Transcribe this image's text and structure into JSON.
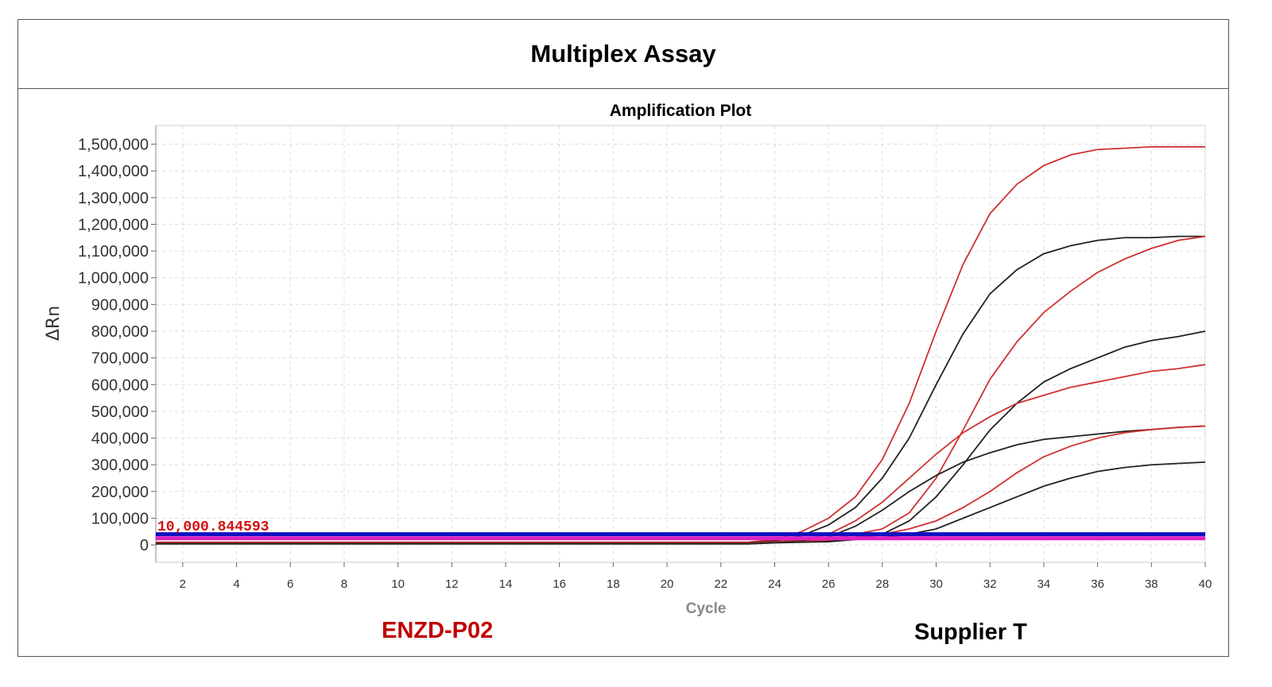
{
  "header": {
    "title": "Multiplex Assay"
  },
  "footer": {
    "left_label": "ENZD-P02",
    "right_label": "Supplier T"
  },
  "colors": {
    "red": "#d03030",
    "black": "#222222",
    "threshold_blue": "#1010c0",
    "threshold_magenta": "#e020c0",
    "left_label": "#c00000"
  },
  "chart_data": {
    "type": "line",
    "title": "Amplification Plot",
    "xlabel": "Cycle",
    "ylabel": "ΔRn",
    "xlim": [
      1,
      40
    ],
    "ylim": [
      -65000,
      1570000
    ],
    "grid": true,
    "xticks": [
      2,
      4,
      6,
      8,
      10,
      12,
      14,
      16,
      18,
      20,
      22,
      24,
      26,
      28,
      30,
      32,
      34,
      36,
      38,
      40
    ],
    "yticks": [
      0,
      100000,
      200000,
      300000,
      400000,
      500000,
      600000,
      700000,
      800000,
      900000,
      1000000,
      1100000,
      1200000,
      1300000,
      1400000,
      1500000
    ],
    "ytick_labels": [
      "0",
      "100,000",
      "200,000",
      "300,000",
      "400,000",
      "500,000",
      "600,000",
      "700,000",
      "800,000",
      "900,000",
      "1,000,000",
      "1,100,000",
      "1,200,000",
      "1,300,000",
      "1,400,000",
      "1,500,000"
    ],
    "threshold_label": "10,000.844593",
    "thresholds": [
      {
        "name": "blue",
        "value": 40000
      },
      {
        "name": "magenta",
        "value": 25000
      }
    ],
    "start_cycle": 24,
    "series": [
      {
        "name": "red-1",
        "color": "red",
        "values": [
          20000,
          50000,
          100000,
          180000,
          320000,
          530000,
          800000,
          1050000,
          1240000,
          1350000,
          1420000,
          1460000,
          1480000,
          1485000,
          1490000,
          1490000,
          1490000
        ]
      },
      {
        "name": "black-1",
        "color": "black",
        "values": [
          15000,
          35000,
          75000,
          140000,
          250000,
          400000,
          600000,
          790000,
          940000,
          1030000,
          1090000,
          1120000,
          1140000,
          1150000,
          1150000,
          1155000,
          1155000
        ]
      },
      {
        "name": "red-2",
        "color": "red",
        "values": [
          10000,
          15000,
          20000,
          40000,
          60000,
          120000,
          250000,
          430000,
          620000,
          760000,
          870000,
          950000,
          1020000,
          1070000,
          1110000,
          1140000,
          1155000
        ]
      },
      {
        "name": "black-2",
        "color": "black",
        "values": [
          10000,
          12000,
          15000,
          25000,
          40000,
          90000,
          180000,
          300000,
          430000,
          530000,
          610000,
          660000,
          700000,
          740000,
          765000,
          780000,
          800000
        ]
      },
      {
        "name": "red-3",
        "color": "red",
        "values": [
          12000,
          20000,
          40000,
          90000,
          160000,
          250000,
          340000,
          420000,
          480000,
          530000,
          560000,
          590000,
          610000,
          630000,
          650000,
          660000,
          675000
        ]
      },
      {
        "name": "black-3",
        "color": "black",
        "values": [
          10000,
          15000,
          30000,
          70000,
          130000,
          200000,
          260000,
          310000,
          345000,
          375000,
          395000,
          405000,
          415000,
          425000,
          432000,
          440000,
          445000
        ]
      },
      {
        "name": "red-4",
        "color": "red",
        "values": [
          10000,
          12000,
          18000,
          30000,
          40000,
          60000,
          90000,
          140000,
          200000,
          270000,
          330000,
          370000,
          400000,
          420000,
          432000,
          440000,
          445000
        ]
      },
      {
        "name": "black-4",
        "color": "black",
        "values": [
          8000,
          10000,
          12000,
          20000,
          28000,
          40000,
          60000,
          100000,
          140000,
          180000,
          220000,
          250000,
          275000,
          290000,
          300000,
          305000,
          310000
        ]
      }
    ]
  }
}
